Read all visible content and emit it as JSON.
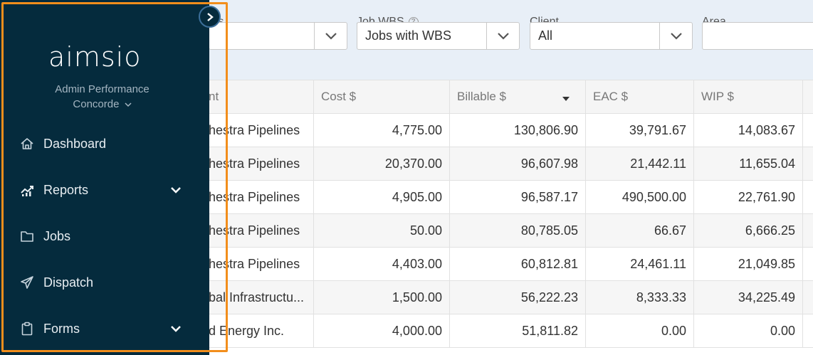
{
  "filters": [
    {
      "label": "Status",
      "visible_label": "tus",
      "value": ""
    },
    {
      "label": "Job WBS",
      "value": "Jobs with WBS",
      "has_help_icon": true
    },
    {
      "label": "Client",
      "value": "All"
    },
    {
      "label": "Area",
      "value": ""
    }
  ],
  "table": {
    "headers": [
      "nt",
      "Cost $",
      "Billable $",
      "EAC $",
      "WIP $",
      ""
    ],
    "sorted_column": "Billable $",
    "sort_direction": "desc",
    "rows": [
      [
        "hestra Pipelines",
        "4,775.00",
        "130,806.90",
        "39,791.67",
        "14,083.67"
      ],
      [
        "hestra Pipelines",
        "20,370.00",
        "96,607.98",
        "21,442.11",
        "11,655.04"
      ],
      [
        "hestra Pipelines",
        "4,905.00",
        "96,587.17",
        "490,500.00",
        "22,761.90"
      ],
      [
        "hestra Pipelines",
        "50.00",
        "80,785.05",
        "66.67",
        "6,666.25"
      ],
      [
        "hestra Pipelines",
        "4,403.00",
        "60,812.81",
        "24,461.11",
        "21,049.85"
      ],
      [
        "bal Infrastructu...",
        "1,500.00",
        "56,222.23",
        "8,333.33",
        "34,225.49"
      ],
      [
        "d Energy Inc.",
        "4,000.00",
        "51,811.82",
        "0.00",
        "0.00"
      ]
    ]
  },
  "sidebar": {
    "logo_text": "aimsio",
    "org_line1": "Admin Performance",
    "org_line2": "Concorde",
    "nav": [
      {
        "label": "Dashboard",
        "icon": "home-icon",
        "expandable": false
      },
      {
        "label": "Reports",
        "icon": "chart-icon",
        "expandable": true
      },
      {
        "label": "Jobs",
        "icon": "folder-icon",
        "expandable": false
      },
      {
        "label": "Dispatch",
        "icon": "send-icon",
        "expandable": false
      },
      {
        "label": "Forms",
        "icon": "clipboard-icon",
        "expandable": true
      }
    ],
    "toggle_icon": "chevron-right-icon"
  },
  "colors": {
    "sidebar_bg": "#052b3d",
    "highlight": "#f28e1c",
    "filter_bar_bg": "#e8eff7",
    "row_alt_bg": "#f6f6f6"
  }
}
